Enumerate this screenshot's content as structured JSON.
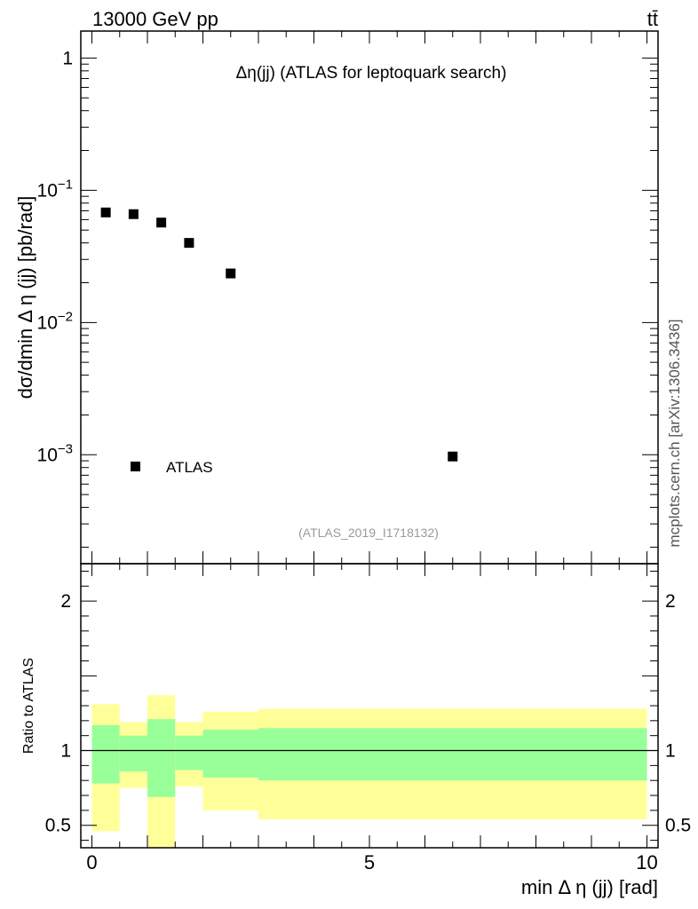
{
  "header": {
    "energy_label": "13000 GeV pp",
    "process_label": "tt̄"
  },
  "side_label": "mcplots.cern.ch [arXiv:1306.3436]",
  "chart_data": [
    {
      "type": "scatter",
      "title": "Δη(jj) (ATLAS for leptoquark search)",
      "ylabel": "dσ/dmin Δ η (jj) [pb/rad]",
      "yscale": "log",
      "ylim": [
        0.00015,
        1.6
      ],
      "xlim": [
        -0.2,
        10.2
      ],
      "yticks": [
        {
          "value": 1,
          "label": "1"
        },
        {
          "value": 0.1,
          "label": "10^-1"
        },
        {
          "value": 0.01,
          "label": "10^-2"
        },
        {
          "value": 0.001,
          "label": "10^-3"
        }
      ],
      "series": [
        {
          "name": "ATLAS",
          "marker": "square",
          "color": "#000000",
          "x": [
            0.25,
            0.75,
            1.25,
            1.75,
            2.5,
            6.5
          ],
          "y": [
            0.068,
            0.066,
            0.057,
            0.04,
            0.0235,
            0.00097
          ]
        }
      ],
      "legend": {
        "placement": "bottom-left",
        "entries": [
          "ATLAS"
        ]
      },
      "annotation": "(ATLAS_2019_I1718132)"
    },
    {
      "type": "area",
      "ylabel": "Ratio to ATLAS",
      "xlabel": "min Δ η (jj) [rad]",
      "ylim": [
        0.35,
        2.25
      ],
      "xlim": [
        -0.2,
        10.2
      ],
      "xticks": [
        0,
        5,
        10
      ],
      "yticks": [
        0.5,
        1,
        2
      ],
      "reference_line": 1,
      "bins": [
        {
          "x0": 0.0,
          "x1": 0.5,
          "inner": [
            0.78,
            1.17
          ],
          "outer": [
            0.46,
            1.31
          ]
        },
        {
          "x0": 0.5,
          "x1": 1.0,
          "inner": [
            0.86,
            1.1
          ],
          "outer": [
            0.75,
            1.19
          ]
        },
        {
          "x0": 1.0,
          "x1": 1.5,
          "inner": [
            0.69,
            1.21
          ],
          "outer": [
            0.35,
            1.37
          ]
        },
        {
          "x0": 1.5,
          "x1": 2.0,
          "inner": [
            0.87,
            1.1
          ],
          "outer": [
            0.76,
            1.19
          ]
        },
        {
          "x0": 2.0,
          "x1": 3.0,
          "inner": [
            0.82,
            1.14
          ],
          "outer": [
            0.6,
            1.26
          ]
        },
        {
          "x0": 3.0,
          "x1": 10.0,
          "inner": [
            0.8,
            1.15
          ],
          "outer": [
            0.54,
            1.28
          ]
        }
      ],
      "band_colors": {
        "inner": "#99ff99",
        "outer": "#ffff99"
      }
    }
  ]
}
